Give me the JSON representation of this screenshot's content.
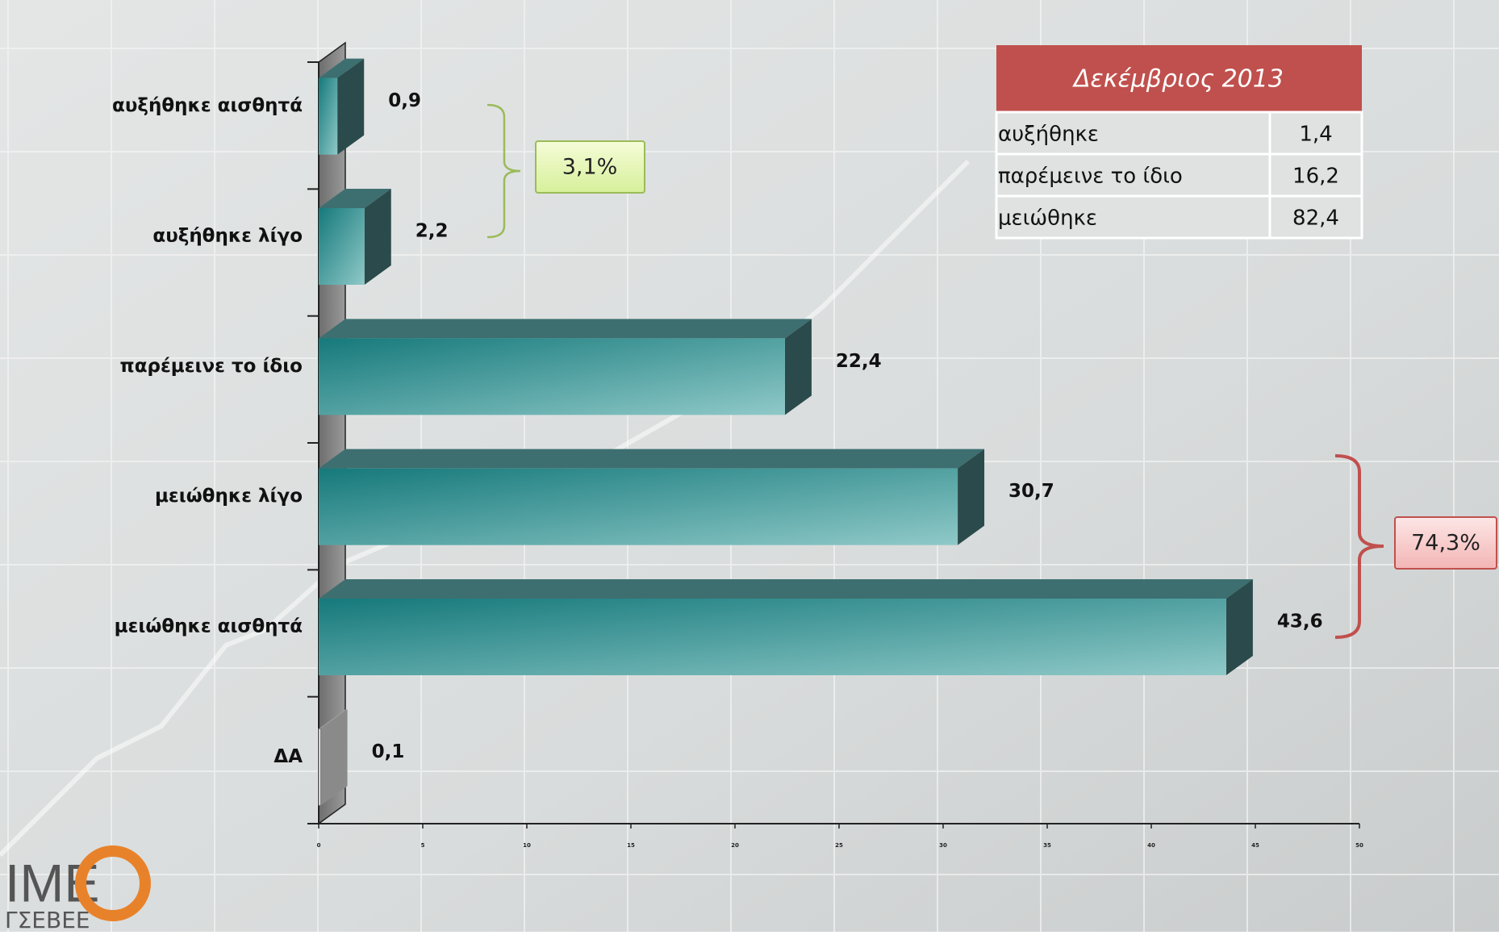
{
  "chart_data": {
    "type": "bar3d-horizontal",
    "categories": [
      "αυξήθηκε αισθητά",
      "αυξήθηκε λίγο",
      "παρέμεινε το ίδιο",
      "μειώθηκε λίγο",
      "μειώθηκε αισθητά",
      "ΔΑ"
    ],
    "values": [
      0.9,
      2.2,
      22.4,
      30.7,
      43.6,
      0.1
    ],
    "value_labels": [
      "0,9",
      "2,2",
      "22,4",
      "30,7",
      "43,6",
      "0,1"
    ],
    "colors": [
      "#2e8f8f",
      "#2e8f8f",
      "#2e8f8f",
      "#2e8f8f",
      "#2e8f8f",
      "#8a8a8a"
    ],
    "xlim": [
      0,
      50
    ],
    "xticks": [
      0,
      5,
      10,
      15,
      20,
      25,
      30,
      35,
      40,
      45,
      50
    ],
    "annotations": [
      {
        "text": "3,1%",
        "color": "green"
      },
      {
        "text": "74,3%",
        "color": "red"
      }
    ]
  },
  "table": {
    "title": "Δεκέμβριος 2013",
    "rows": [
      [
        "αυξήθηκε",
        "1,4"
      ],
      [
        "παρέμεινε το ίδιο",
        "16,2"
      ],
      [
        "μειώθηκε",
        "82,4"
      ]
    ]
  },
  "logo": {
    "name": "IME",
    "org": "ΓΣΕΒΕΕ"
  }
}
